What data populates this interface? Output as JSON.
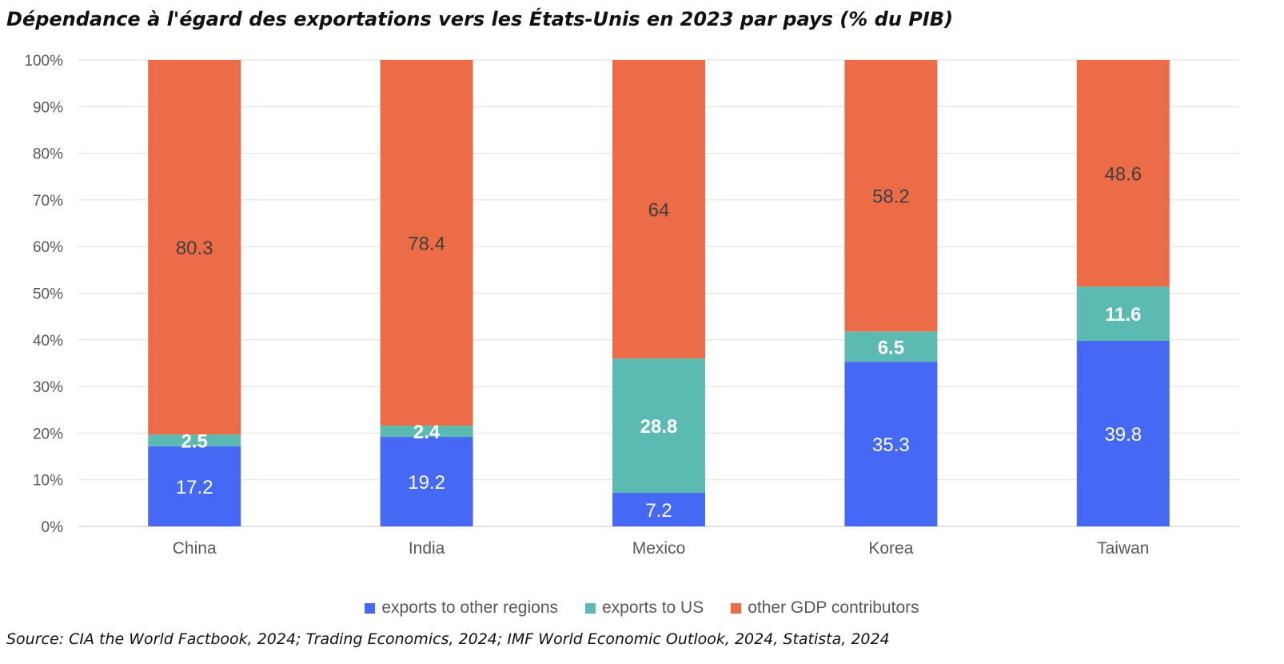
{
  "chart_data": {
    "type": "bar",
    "stacked": true,
    "title": "Dépendance à l'égard des exportations vers les États-Unis en 2023 par pays (% du PIB)",
    "source": "Source: CIA the World Factbook, 2024; Trading Economics, 2024; IMF World Economic Outlook, 2024, Statista, 2024",
    "categories": [
      "China",
      "India",
      "Mexico",
      "Korea",
      "Taiwan"
    ],
    "series": [
      {
        "name": "exports to other regions",
        "color": "#4669F5",
        "label_color": "#ffffff",
        "label_weight": "normal",
        "values": [
          17.2,
          19.2,
          7.2,
          35.3,
          39.8
        ]
      },
      {
        "name": "exports to US",
        "color": "#5BBBB2",
        "label_color": "#ffffff",
        "label_weight": "bold",
        "values": [
          2.5,
          2.4,
          28.8,
          6.5,
          11.6
        ]
      },
      {
        "name": "other GDP contributors",
        "color": "#EC6C47",
        "label_color": "#404040",
        "label_weight": "normal",
        "values": [
          80.3,
          78.4,
          64,
          58.2,
          48.6
        ]
      }
    ],
    "y_ticks": [
      "0%",
      "10%",
      "20%",
      "30%",
      "40%",
      "50%",
      "60%",
      "70%",
      "80%",
      "90%",
      "100%"
    ],
    "ylim": [
      0,
      100
    ],
    "grid": true,
    "legend_position": "bottom"
  }
}
